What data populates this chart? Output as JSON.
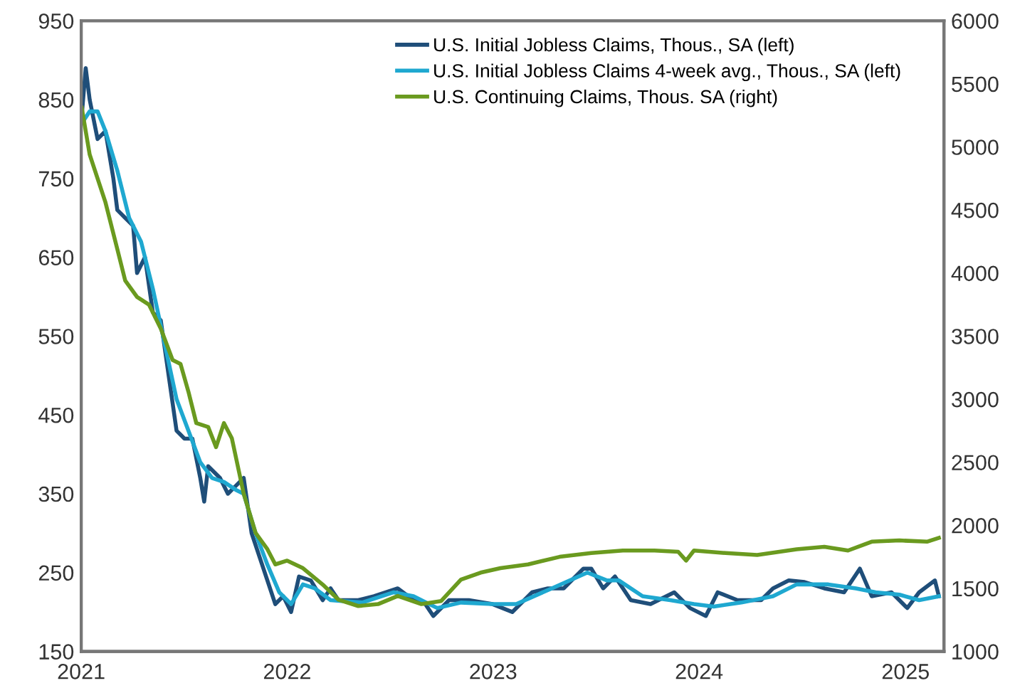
{
  "chart_data": {
    "type": "line",
    "xlim": [
      "2021-01-01",
      "2025-03-10"
    ],
    "xticks": [
      {
        "value": "2021-01-01",
        "label": "2021"
      },
      {
        "value": "2022-01-01",
        "label": "2022"
      },
      {
        "value": "2023-01-01",
        "label": "2023"
      },
      {
        "value": "2024-01-01",
        "label": "2024"
      },
      {
        "value": "2025-01-01",
        "label": "2025"
      }
    ],
    "ylim": [
      150,
      950
    ],
    "yticks": [
      150,
      250,
      350,
      450,
      550,
      650,
      750,
      850,
      950
    ],
    "y2lim": [
      1000,
      6000
    ],
    "y2ticks": [
      1000,
      1500,
      2000,
      2500,
      3000,
      3500,
      4000,
      4500,
      5000,
      5500,
      6000
    ],
    "grid": false,
    "legend": "top right",
    "series": [
      {
        "name": "U.S. Initial Jobless Claims, Thous., SA (left)",
        "color": "#1f4e79",
        "x": [
          "2021-01-02",
          "2021-01-09",
          "2021-01-16",
          "2021-01-30",
          "2021-02-13",
          "2021-02-27",
          "2021-03-06",
          "2021-03-20",
          "2021-04-03",
          "2021-04-10",
          "2021-04-24",
          "2021-05-08",
          "2021-05-22",
          "2021-06-05",
          "2021-06-19",
          "2021-07-03",
          "2021-07-17",
          "2021-07-31",
          "2021-08-07",
          "2021-08-14",
          "2021-09-04",
          "2021-09-18",
          "2021-10-02",
          "2021-10-16",
          "2021-10-30",
          "2021-11-13",
          "2021-11-27",
          "2021-12-11",
          "2021-12-25",
          "2022-01-08",
          "2022-01-22",
          "2022-02-12",
          "2022-03-05",
          "2022-03-19",
          "2022-04-02",
          "2022-05-07",
          "2022-06-04",
          "2022-07-16",
          "2022-08-13",
          "2022-09-03",
          "2022-09-17",
          "2022-10-15",
          "2022-11-19",
          "2022-12-31",
          "2023-02-04",
          "2023-03-11",
          "2023-04-08",
          "2023-05-06",
          "2023-06-10",
          "2023-06-24",
          "2023-07-15",
          "2023-08-05",
          "2023-09-02",
          "2023-10-07",
          "2023-11-18",
          "2023-12-16",
          "2024-01-13",
          "2024-02-03",
          "2024-03-09",
          "2024-04-20",
          "2024-05-11",
          "2024-06-08",
          "2024-07-06",
          "2024-08-10",
          "2024-09-14",
          "2024-10-12",
          "2024-11-02",
          "2024-12-07",
          "2025-01-04",
          "2025-01-25",
          "2025-02-22",
          "2025-03-01"
        ],
        "values": [
          830,
          890,
          850,
          800,
          810,
          750,
          710,
          700,
          690,
          630,
          650,
          580,
          570,
          500,
          430,
          420,
          420,
          370,
          340,
          385,
          370,
          350,
          360,
          370,
          300,
          270,
          240,
          210,
          220,
          200,
          245,
          240,
          215,
          230,
          215,
          215,
          220,
          230,
          215,
          210,
          195,
          215,
          215,
          210,
          200,
          225,
          230,
          230,
          255,
          255,
          230,
          245,
          215,
          210,
          225,
          205,
          195,
          225,
          215,
          215,
          230,
          240,
          238,
          230,
          225,
          255,
          220,
          225,
          205,
          225,
          240,
          220
        ]
      },
      {
        "name": "U.S. Initial Jobless Claims 4-week avg., Thous., SA (left)",
        "color": "#1fa8d0",
        "x": [
          "2021-01-02",
          "2021-01-16",
          "2021-01-30",
          "2021-02-13",
          "2021-03-06",
          "2021-03-27",
          "2021-04-17",
          "2021-05-08",
          "2021-05-29",
          "2021-06-19",
          "2021-07-10",
          "2021-07-31",
          "2021-08-21",
          "2021-09-11",
          "2021-10-02",
          "2021-10-16",
          "2021-11-06",
          "2021-11-27",
          "2021-12-18",
          "2022-01-08",
          "2022-01-29",
          "2022-02-19",
          "2022-03-19",
          "2022-05-14",
          "2022-07-09",
          "2022-08-13",
          "2022-09-24",
          "2022-11-05",
          "2022-12-31",
          "2023-02-11",
          "2023-04-15",
          "2023-06-17",
          "2023-07-22",
          "2023-08-12",
          "2023-09-23",
          "2023-11-11",
          "2023-12-23",
          "2024-01-27",
          "2024-03-16",
          "2024-05-11",
          "2024-06-22",
          "2024-08-17",
          "2024-10-05",
          "2024-11-09",
          "2024-12-21",
          "2025-01-25",
          "2025-03-01"
        ],
        "values": [
          820,
          835,
          835,
          810,
          760,
          700,
          670,
          610,
          540,
          470,
          430,
          390,
          370,
          365,
          355,
          350,
          300,
          260,
          225,
          210,
          235,
          230,
          215,
          212,
          225,
          220,
          205,
          212,
          210,
          210,
          230,
          250,
          240,
          240,
          220,
          215,
          210,
          207,
          212,
          220,
          235,
          235,
          230,
          225,
          222,
          215,
          220
        ]
      },
      {
        "name": "U.S. Continuing Claims, Thous. SA (right)",
        "color": "#6a9a1f",
        "axis": "y2",
        "x": [
          "2021-01-02",
          "2021-01-16",
          "2021-02-13",
          "2021-03-06",
          "2021-03-20",
          "2021-04-10",
          "2021-05-01",
          "2021-05-22",
          "2021-06-12",
          "2021-06-26",
          "2021-07-10",
          "2021-07-24",
          "2021-08-14",
          "2021-08-28",
          "2021-09-11",
          "2021-09-25",
          "2021-10-16",
          "2021-11-06",
          "2021-11-27",
          "2021-12-11",
          "2022-01-01",
          "2022-01-29",
          "2022-03-05",
          "2022-04-02",
          "2022-05-07",
          "2022-06-11",
          "2022-07-16",
          "2022-08-27",
          "2022-10-01",
          "2022-11-05",
          "2022-12-10",
          "2023-01-14",
          "2023-03-04",
          "2023-04-29",
          "2023-06-24",
          "2023-08-19",
          "2023-10-14",
          "2023-11-25",
          "2023-12-09",
          "2023-12-23",
          "2024-02-17",
          "2024-04-13",
          "2024-06-22",
          "2024-08-10",
          "2024-09-21",
          "2024-11-02",
          "2024-12-21",
          "2025-02-08",
          "2025-03-01"
        ],
        "values": [
          5310,
          4940,
          4560,
          4190,
          3940,
          3810,
          3750,
          3560,
          3310,
          3280,
          3060,
          2810,
          2780,
          2620,
          2810,
          2690,
          2250,
          1940,
          1810,
          1690,
          1720,
          1660,
          1530,
          1410,
          1360,
          1375,
          1440,
          1375,
          1400,
          1570,
          1625,
          1660,
          1690,
          1750,
          1780,
          1800,
          1800,
          1790,
          1720,
          1800,
          1780,
          1765,
          1810,
          1830,
          1800,
          1870,
          1880,
          1870,
          1900
        ]
      }
    ]
  }
}
